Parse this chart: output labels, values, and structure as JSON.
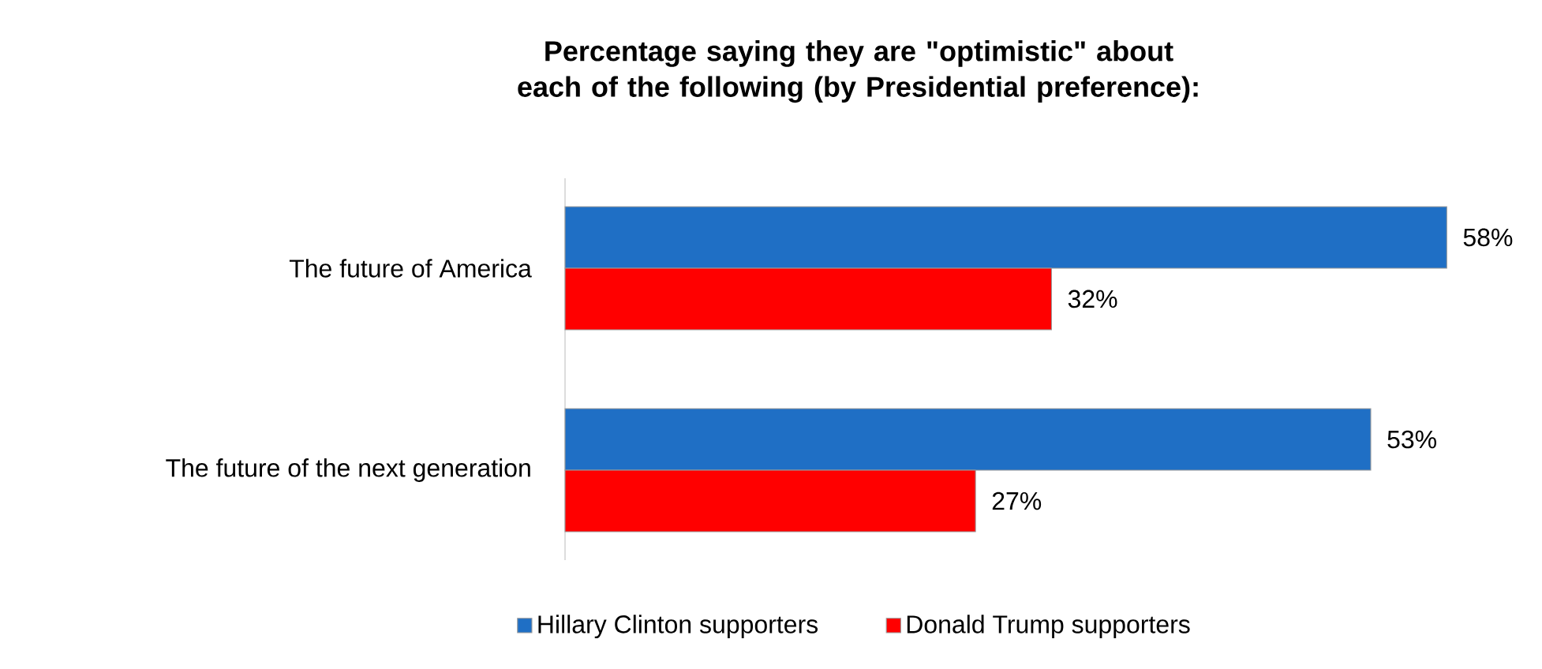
{
  "chart_data": {
    "type": "bar",
    "orientation": "horizontal",
    "title": "Percentage saying they are \"optimistic\" about each of the following (by Presidential preference):",
    "categories": [
      "The future of America",
      "The future of the next generation"
    ],
    "series": [
      {
        "name": "Hillary Clinton supporters",
        "color": "#1f6fc5",
        "values": [
          58,
          53
        ],
        "value_labels": [
          "58%",
          "53%"
        ]
      },
      {
        "name": "Donald Trump supporters",
        "color": "#ff0000",
        "values": [
          32,
          27
        ],
        "value_labels": [
          "32%",
          "27%"
        ]
      }
    ],
    "legend": "bottom"
  }
}
